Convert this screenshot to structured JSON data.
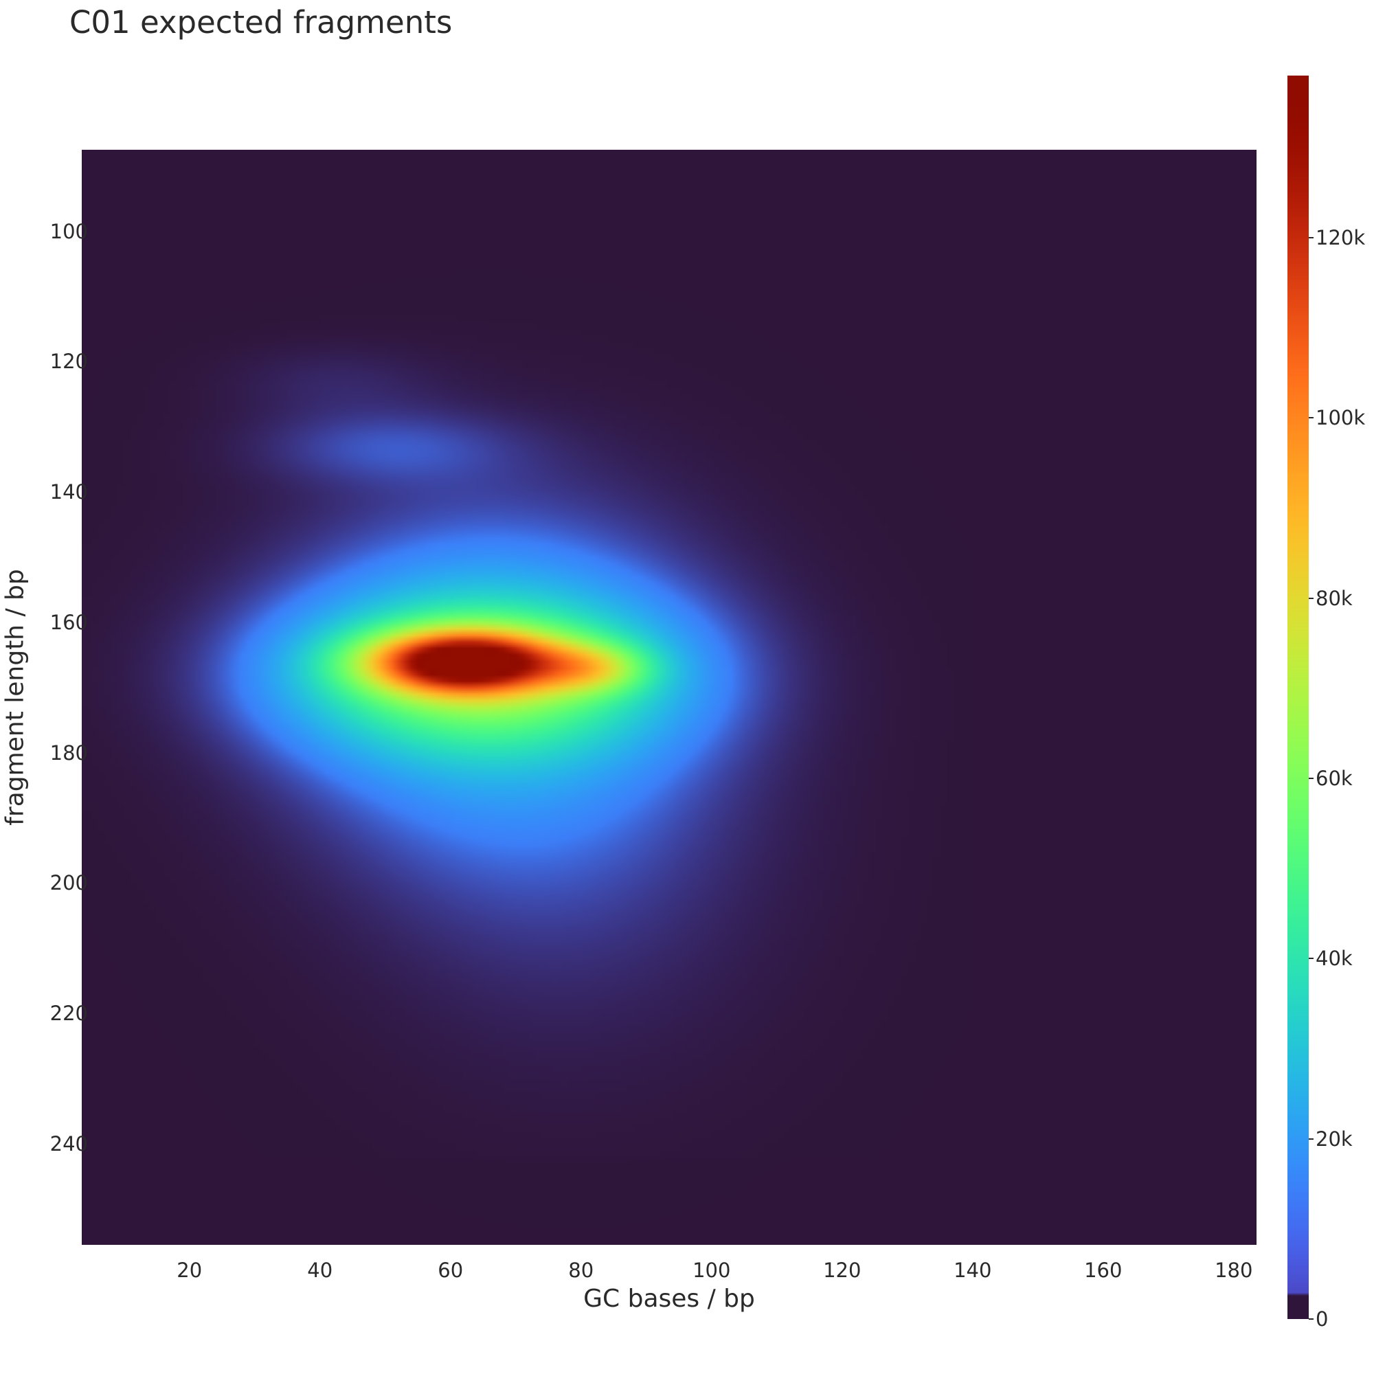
{
  "chart_data": {
    "type": "heatmap",
    "title": "C01 expected fragments",
    "xlabel": "GC bases / bp",
    "ylabel": "fragment length / bp",
    "x_range": [
      3.5,
      183.5
    ],
    "y_range": [
      87.5,
      255.5
    ],
    "y_inverted": true,
    "x_ticks": [
      20,
      40,
      60,
      80,
      100,
      120,
      140,
      160,
      180
    ],
    "y_ticks": [
      100,
      120,
      140,
      160,
      180,
      200,
      220,
      240
    ],
    "colorscale": "turbo",
    "background_color": "#2e1539",
    "color_range": [
      0,
      138000
    ],
    "colorbar_ticks": [
      {
        "value": 0,
        "label": "0"
      },
      {
        "value": 20000,
        "label": "20k"
      },
      {
        "value": 40000,
        "label": "40k"
      },
      {
        "value": 60000,
        "label": "60k"
      },
      {
        "value": 80000,
        "label": "80k"
      },
      {
        "value": 100000,
        "label": "100k"
      },
      {
        "value": 120000,
        "label": "120k"
      }
    ],
    "peak": {
      "gc": 62,
      "length": 166,
      "value": 138000
    },
    "components": [
      {
        "gc": 62,
        "length": 166,
        "sx": 10,
        "sy": 3.2,
        "amp": 95000
      },
      {
        "gc": 82,
        "length": 167,
        "sx": 6,
        "sy": 2.6,
        "amp": 30000
      },
      {
        "gc": 64,
        "length": 168,
        "sx": 20,
        "sy": 8,
        "amp": 45000
      },
      {
        "gc": 66,
        "length": 168,
        "sx": 22,
        "sy": 18,
        "amp": 23000
      },
      {
        "gc": 78,
        "length": 195,
        "sx": 22,
        "sy": 22,
        "amp": 6000
      },
      {
        "gc": 50,
        "length": 133,
        "sx": 14,
        "sy": 4,
        "amp": 8000
      },
      {
        "gc": 42,
        "length": 123,
        "sx": 12,
        "sy": 4,
        "amp": 3500
      }
    ]
  }
}
